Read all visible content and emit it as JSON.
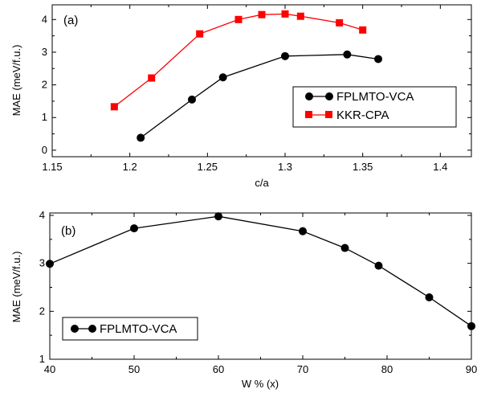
{
  "chart_data": [
    {
      "type": "line",
      "panel_label": "(a)",
      "xlabel": "c/a",
      "ylabel": "MAE (meV/f.u.)",
      "xlim": [
        1.15,
        1.42
      ],
      "ylim": [
        -0.2,
        4.45
      ],
      "xticks": [
        1.15,
        1.2,
        1.25,
        1.3,
        1.35,
        1.4
      ],
      "xtick_labels": [
        "1.15",
        "1.2",
        "1.25",
        "1.3",
        "1.35",
        "1.4"
      ],
      "yticks": [
        0,
        1,
        2,
        3,
        4
      ],
      "ytick_labels": [
        "0",
        "1",
        "2",
        "3",
        "4"
      ],
      "grid": false,
      "legend_position": "bottom-right",
      "series": [
        {
          "name": "FPLMTO-VCA",
          "color": "#000000",
          "marker": "circle",
          "x": [
            1.207,
            1.24,
            1.26,
            1.3,
            1.34,
            1.36
          ],
          "y": [
            0.38,
            1.55,
            2.23,
            2.88,
            2.93,
            2.79
          ]
        },
        {
          "name": "KKR-CPA",
          "color": "#ff0000",
          "marker": "square",
          "x": [
            1.19,
            1.214,
            1.245,
            1.27,
            1.285,
            1.3,
            1.31,
            1.335,
            1.35
          ],
          "y": [
            1.33,
            2.21,
            3.56,
            4.0,
            4.15,
            4.17,
            4.1,
            3.9,
            3.68
          ]
        }
      ]
    },
    {
      "type": "line",
      "panel_label": "(b)",
      "xlabel": "W % (x)",
      "ylabel": "MAE (meV/f.u.)",
      "xlim": [
        40,
        90
      ],
      "ylim": [
        1,
        4.05
      ],
      "xticks": [
        40,
        50,
        60,
        70,
        80,
        90
      ],
      "xtick_labels": [
        "40",
        "50",
        "60",
        "70",
        "80",
        "90"
      ],
      "yticks": [
        1,
        2,
        3,
        4
      ],
      "ytick_labels": [
        "1",
        "2",
        "3",
        "4"
      ],
      "grid": false,
      "legend_position": "bottom-left",
      "series": [
        {
          "name": "FPLMTO-VCA",
          "color": "#000000",
          "marker": "circle",
          "x": [
            40,
            50,
            60,
            70,
            75,
            79,
            85,
            90
          ],
          "y": [
            2.99,
            3.73,
            3.98,
            3.67,
            3.32,
            2.95,
            2.29,
            1.69
          ]
        }
      ]
    }
  ]
}
